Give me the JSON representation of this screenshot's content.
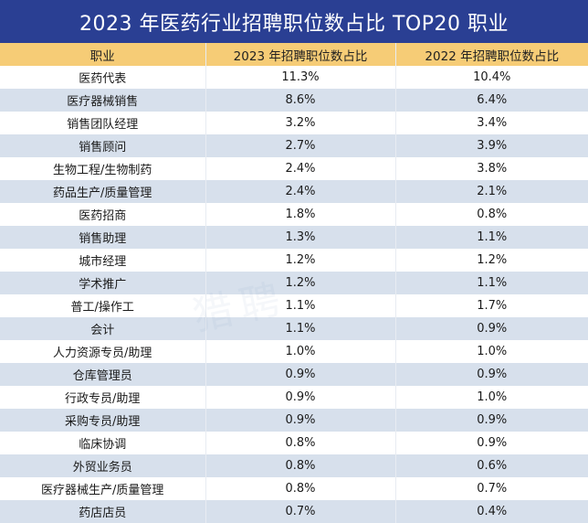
{
  "chart_data": {
    "type": "table",
    "title": "2023 年医药行业招聘职位数占比 TOP20 职业",
    "columns": [
      "职业",
      "2023 年招聘职位数占比",
      "2022 年招聘职位数占比"
    ],
    "rows": [
      [
        "医药代表",
        "11.3%",
        "10.4%"
      ],
      [
        "医疗器械销售",
        "8.6%",
        "6.4%"
      ],
      [
        "销售团队经理",
        "3.2%",
        "3.4%"
      ],
      [
        "销售顾问",
        "2.7%",
        "3.9%"
      ],
      [
        "生物工程/生物制药",
        "2.4%",
        "3.8%"
      ],
      [
        "药品生产/质量管理",
        "2.4%",
        "2.1%"
      ],
      [
        "医药招商",
        "1.8%",
        "0.8%"
      ],
      [
        "销售助理",
        "1.3%",
        "1.1%"
      ],
      [
        "城市经理",
        "1.2%",
        "1.2%"
      ],
      [
        "学术推广",
        "1.2%",
        "1.1%"
      ],
      [
        "普工/操作工",
        "1.1%",
        "1.7%"
      ],
      [
        "会计",
        "1.1%",
        "0.9%"
      ],
      [
        "人力资源专员/助理",
        "1.0%",
        "1.0%"
      ],
      [
        "仓库管理员",
        "0.9%",
        "0.9%"
      ],
      [
        "行政专员/助理",
        "0.9%",
        "1.0%"
      ],
      [
        "采购专员/助理",
        "0.9%",
        "0.9%"
      ],
      [
        "临床协调",
        "0.8%",
        "0.9%"
      ],
      [
        "外贸业务员",
        "0.8%",
        "0.6%"
      ],
      [
        "医疗器械生产/质量管理",
        "0.8%",
        "0.7%"
      ],
      [
        "药店店员",
        "0.7%",
        "0.4%"
      ]
    ]
  },
  "colors": {
    "title_bg": "#2a3f93",
    "header_bg": "#f6cc76",
    "row_alt_bg": "#d7e0ec"
  },
  "watermark_text": "猎聘"
}
